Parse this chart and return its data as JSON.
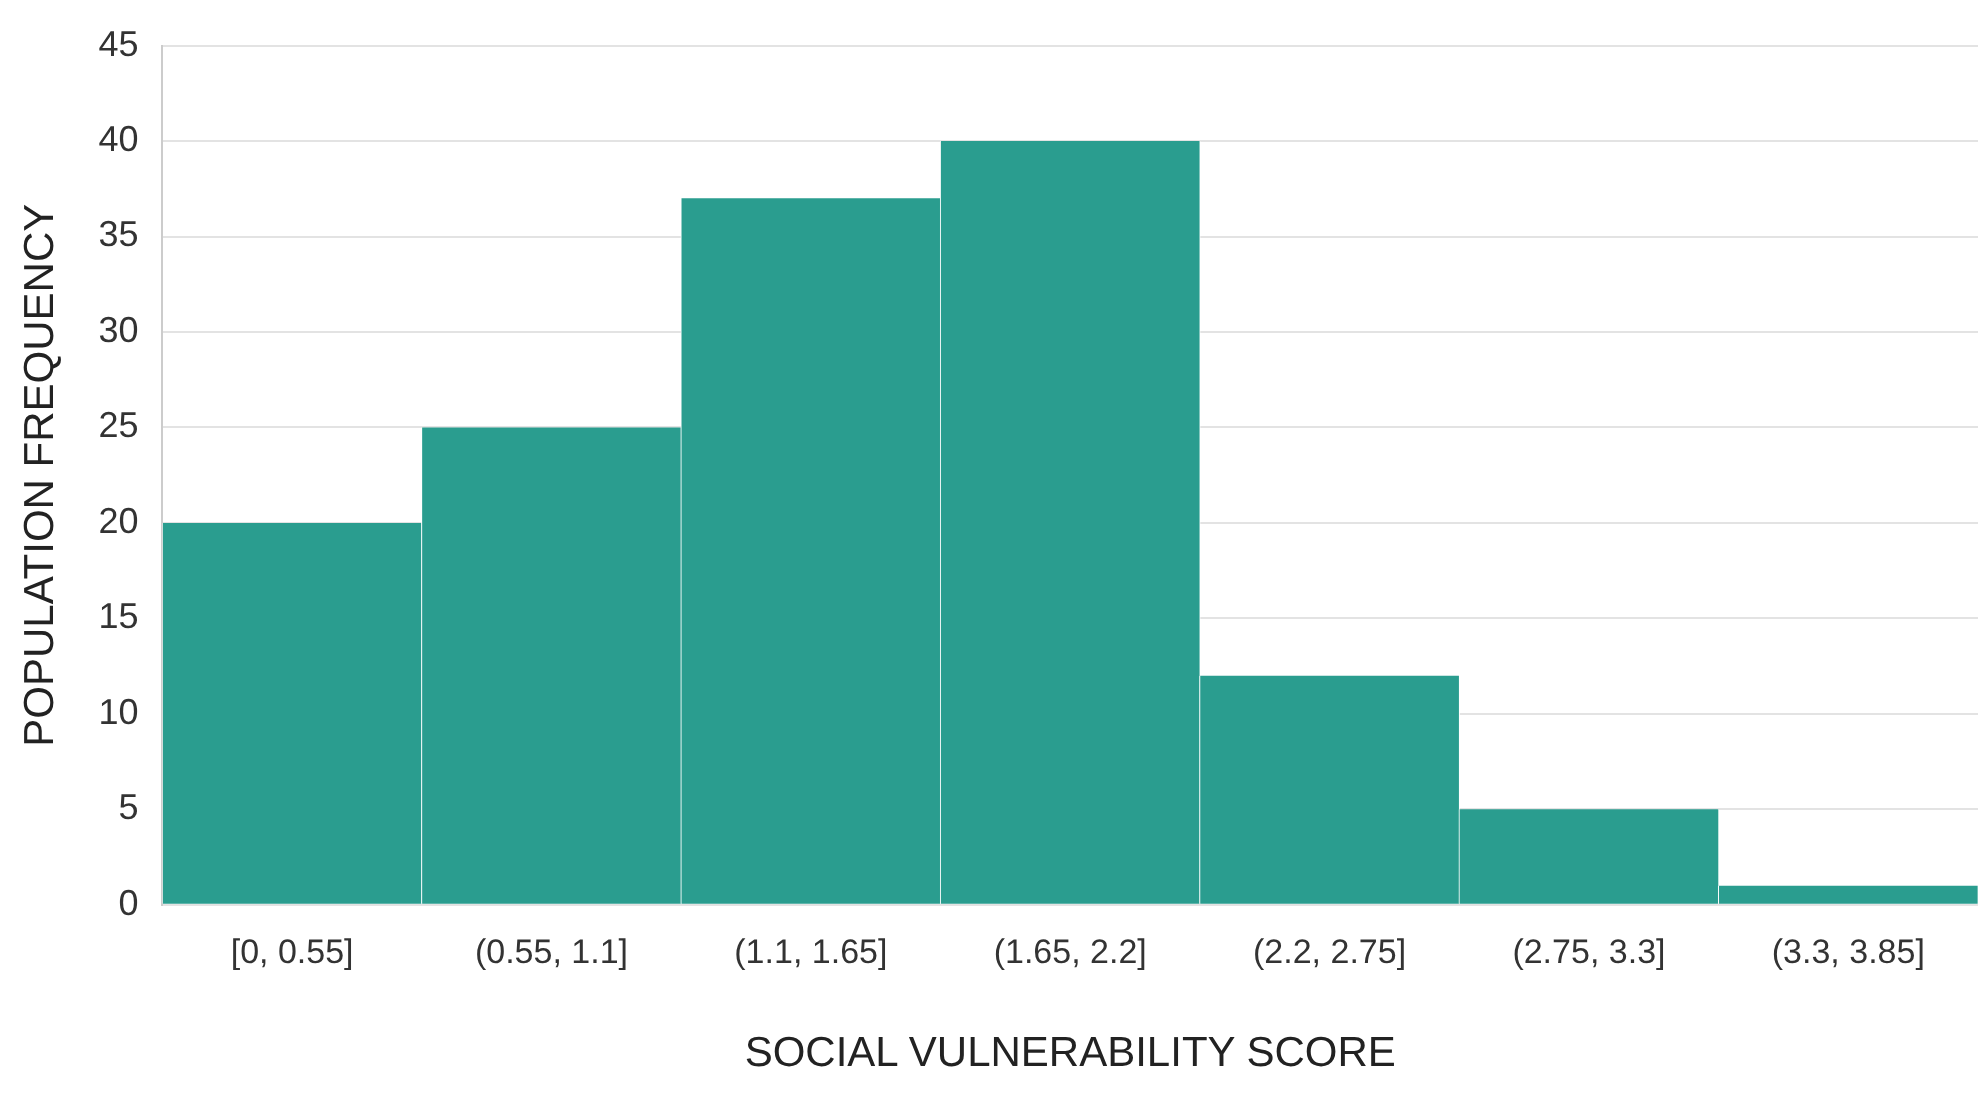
{
  "chart_data": {
    "type": "bar",
    "xlabel": "SOCIAL VULNERABILITY SCORE",
    "ylabel": "POPULATION FREQUENCY",
    "categories": [
      "[0, 0.55]",
      "(0.55, 1.1]",
      "(1.1, 1.65]",
      "(1.65, 2.2]",
      "(2.2, 2.75]",
      "(2.75, 3.3]",
      "(3.3, 3.85]"
    ],
    "values": [
      20,
      25,
      37,
      40,
      12,
      5,
      1
    ],
    "color": "#2a9d8f",
    "ylim": [
      0,
      45
    ],
    "yticks": [
      0,
      5,
      10,
      15,
      20,
      25,
      30,
      35,
      40,
      45
    ],
    "grid": "y",
    "legend": false
  }
}
